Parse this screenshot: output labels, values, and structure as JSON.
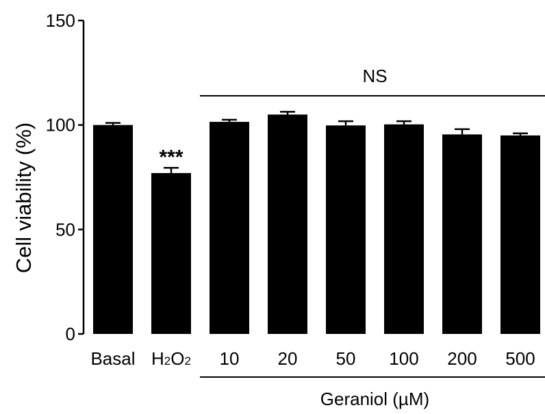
{
  "chart_data": {
    "type": "bar",
    "ylabel": "Cell viability (%)",
    "ylim": [
      0,
      150
    ],
    "yticks": [
      0,
      50,
      100,
      150
    ],
    "categories": [
      "Basal",
      "H2O2",
      "10",
      "20",
      "50",
      "100",
      "200",
      "500"
    ],
    "values": [
      100,
      77,
      101.5,
      105,
      99.8,
      100.3,
      95.5,
      95
    ],
    "errors": [
      1,
      2.5,
      1,
      1.3,
      2,
      1.5,
      2.5,
      1
    ],
    "bar_color": "#000000",
    "significance": {
      "category": "H2O2",
      "label": "***"
    },
    "group_bracket": {
      "label": "NS",
      "from": "10",
      "to": "500"
    },
    "group_label": {
      "text": "Geraniol (µM)",
      "from": "10",
      "to": "500"
    },
    "grid": false
  }
}
